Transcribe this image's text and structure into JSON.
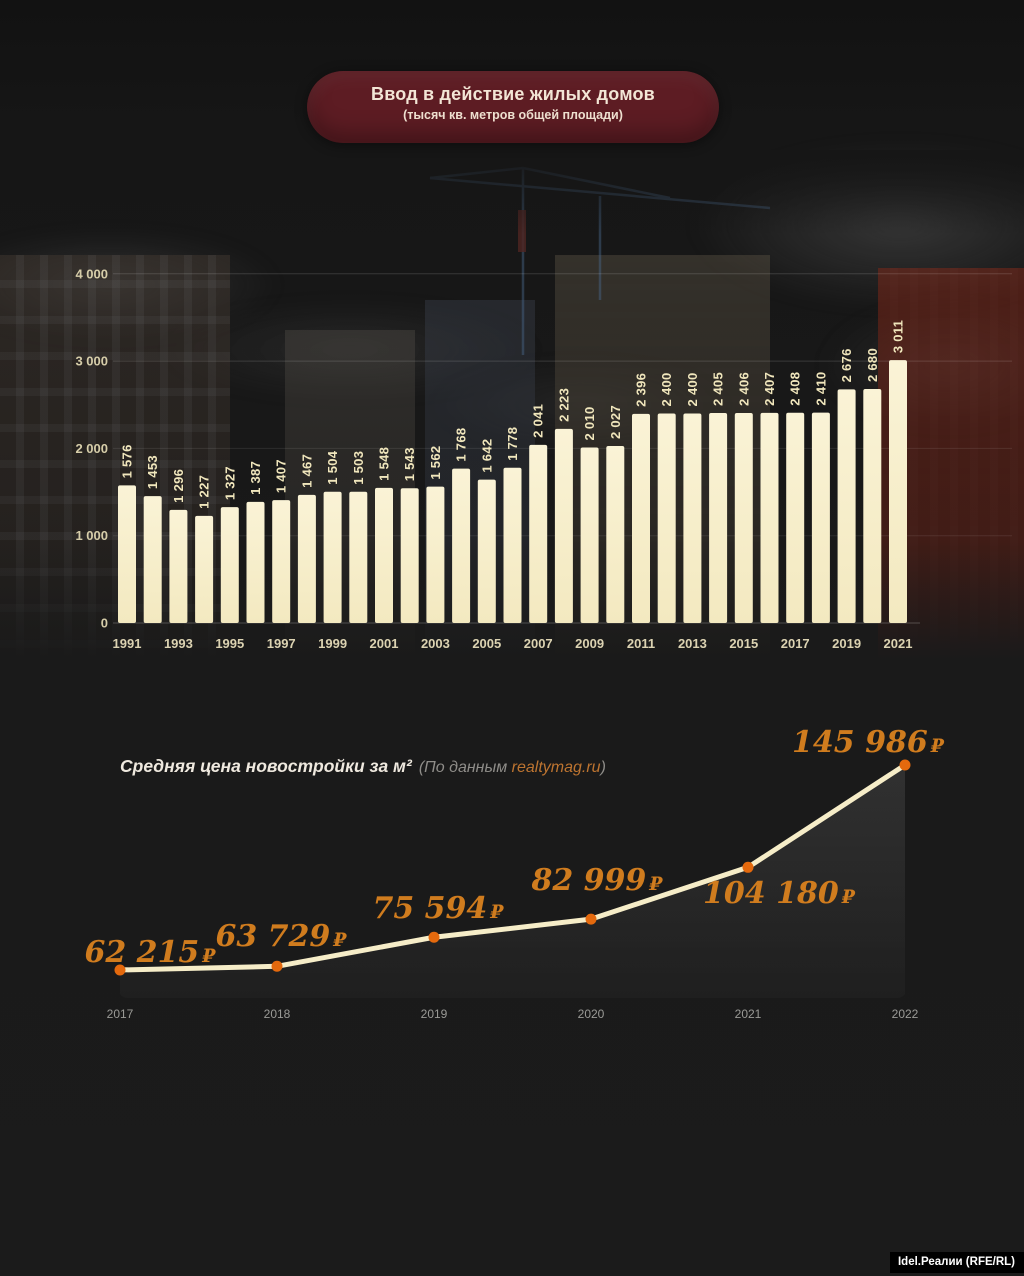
{
  "header": {
    "title": "Ввод в действие жилых домов",
    "subtitle": "(тысяч кв. метров общей площади)"
  },
  "chart_data": [
    {
      "type": "bar",
      "title": "Ввод в действие жилых домов",
      "subtitle": "(тысяч кв. метров общей площади)",
      "categories": [
        1991,
        1992,
        1993,
        1994,
        1995,
        1996,
        1997,
        1998,
        1999,
        2000,
        2001,
        2002,
        2003,
        2004,
        2005,
        2006,
        2007,
        2008,
        2009,
        2010,
        2011,
        2012,
        2013,
        2014,
        2015,
        2016,
        2017,
        2018,
        2019,
        2020,
        2021
      ],
      "values": [
        1576,
        1453,
        1296,
        1227,
        1327,
        1387,
        1407,
        1467,
        1504,
        1503,
        1548,
        1543,
        1562,
        1768,
        1642,
        1778,
        2041,
        2223,
        2010,
        2027,
        2396,
        2400,
        2400,
        2405,
        2406,
        2407,
        2408,
        2410,
        2676,
        2680,
        3011
      ],
      "value_labels": [
        "1 576",
        "1 453",
        "1 296",
        "1 227",
        "1 327",
        "1 387",
        "1 407",
        "1 467",
        "1 504",
        "1 503",
        "1 548",
        "1 543",
        "1 562",
        "1 768",
        "1 642",
        "1 778",
        "2 041",
        "2 223",
        "2 010",
        "2 027",
        "2 396",
        "2 400",
        "2 400",
        "2 405",
        "2 406",
        "2 407",
        "2 408",
        "2 410",
        "2 676",
        "2 680",
        "3 011"
      ],
      "x_tick_labels": [
        "1991",
        "1993",
        "1995",
        "1997",
        "1999",
        "2001",
        "2003",
        "2005",
        "2007",
        "2009",
        "2011",
        "2013",
        "2015",
        "2017",
        "2019",
        "2021"
      ],
      "y_ticks": [
        0,
        1000,
        2000,
        3000,
        4000
      ],
      "y_tick_labels": [
        "0",
        "1 000",
        "2 000",
        "3 000",
        "4 000"
      ],
      "ylim": [
        0,
        4000
      ],
      "grid": "on",
      "bar_color": "#f7efcc",
      "label_color": "#f0e6bc"
    },
    {
      "type": "line",
      "title": "Средняя цена новостройки за м²",
      "source_prefix": "(По данным ",
      "source_link": "realtymag.ru",
      "source_suffix": ")",
      "x": [
        "2017",
        "2018",
        "2019",
        "2020",
        "2021",
        "2022"
      ],
      "values": [
        62215,
        63729,
        75594,
        82999,
        104180,
        145986
      ],
      "point_labels": [
        "62 215",
        "63 729",
        "75 594",
        "82 999",
        "104 180",
        "145 986"
      ],
      "currency": "₽",
      "line_color": "#f6edc8",
      "point_color": "#e4690d",
      "label_color": "#d07c1e",
      "legend_position": "none",
      "grid": "off"
    }
  ],
  "colors": {
    "background": "#1a1a1a",
    "title_pill": "#5d1c23",
    "bar_fill": "#f7efcc",
    "line": "#f6edc8",
    "point": "#e4690d",
    "price_label": "#d07c1e",
    "source_link": "#bd7430"
  },
  "watermark": {
    "text": "Idel.Реалии (RFE/RL)"
  }
}
